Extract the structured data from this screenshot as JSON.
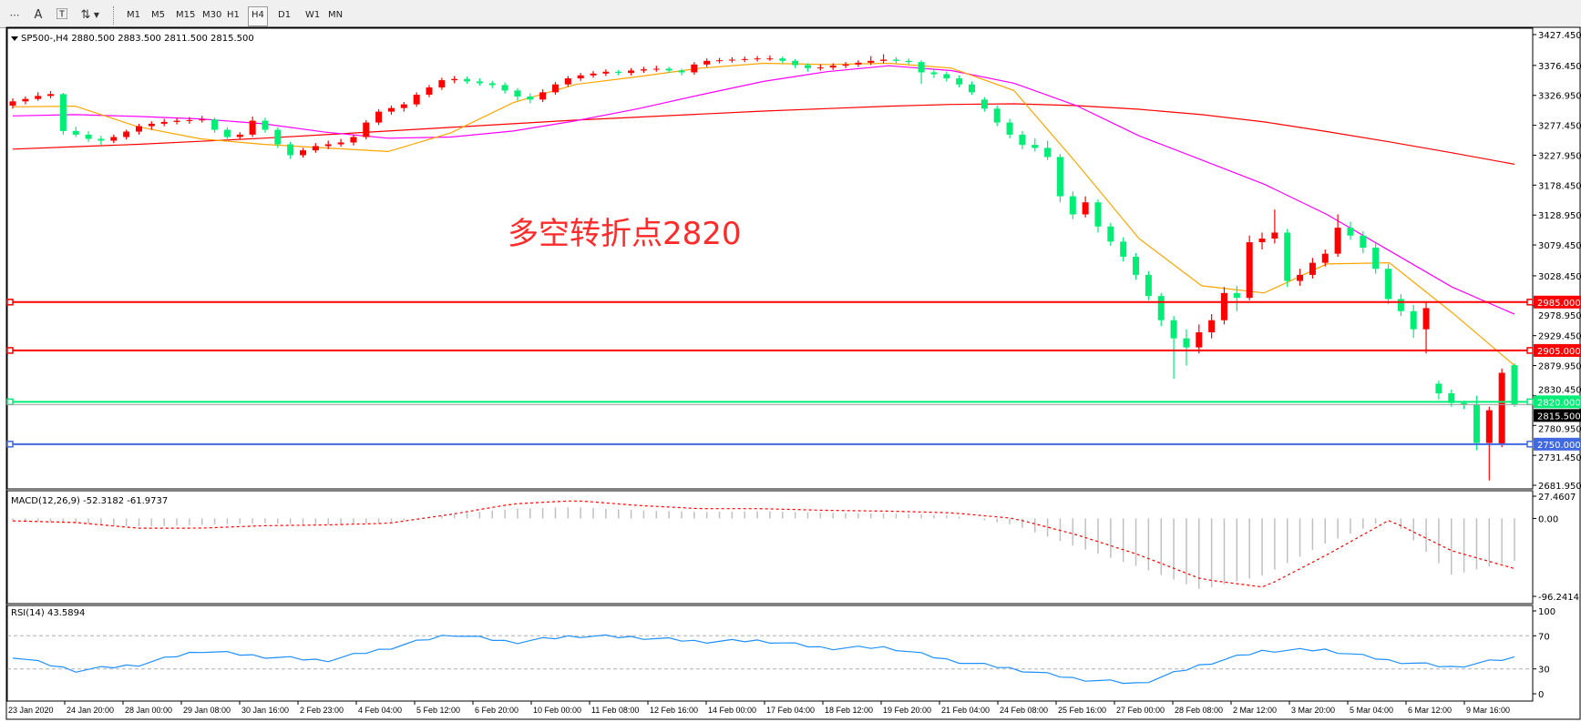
{
  "toolbar": {
    "icons": [
      "grid-icon",
      "text-icon",
      "text-label-icon",
      "arrows-icon"
    ],
    "timeframes": [
      "M1",
      "M5",
      "M15",
      "M30",
      "H1",
      "H4",
      "D1",
      "W1",
      "MN"
    ],
    "active_timeframe": "H4"
  },
  "chart_header": "SP500-,H4  2880.500 2883.500 2811.500 2815.500",
  "annotation": "多空转折点2820",
  "colors": {
    "bull": "#ff0000",
    "bear": "#00ee76",
    "ma_slow": "#ff0000",
    "ma_mid": "#ff00ff",
    "ma_fast": "#ffa500",
    "macd_hist": "#c0c0c0",
    "macd_signal": "#ff0000",
    "rsi": "#1e90ff"
  },
  "chart_data": {
    "type": "candlestick",
    "symbol": "SP500-",
    "timeframe": "H4",
    "ylim": [
      2681.95,
      3427.45
    ],
    "y_ticks": [
      "3427.450",
      "3376.450",
      "3326.950",
      "3277.450",
      "3227.950",
      "3178.450",
      "3128.950",
      "3079.450",
      "3028.450",
      "2978.950",
      "2929.450",
      "2879.950",
      "2830.450",
      "2780.950",
      "2731.450",
      "2681.950"
    ],
    "x_ticks": [
      "23 Jan 2020",
      "24 Jan 20:00",
      "28 Jan 00:00",
      "29 Jan 08:00",
      "30 Jan 16:00",
      "2 Feb 23:00",
      "4 Feb 04:00",
      "5 Feb 12:00",
      "6 Feb 20:00",
      "10 Feb 00:00",
      "11 Feb 08:00",
      "12 Feb 16:00",
      "14 Feb 00:00",
      "17 Feb 04:00",
      "18 Feb 12:00",
      "19 Feb 20:00",
      "21 Feb 04:00",
      "24 Feb 08:00",
      "25 Feb 16:00",
      "27 Feb 00:00",
      "28 Feb 08:00",
      "2 Mar 12:00",
      "3 Mar 20:00",
      "5 Mar 04:00",
      "6 Mar 12:00",
      "9 Mar 16:00"
    ],
    "candles_ohlc": [
      [
        3310,
        3322,
        3305,
        3317
      ],
      [
        3317,
        3325,
        3312,
        3321
      ],
      [
        3321,
        3332,
        3318,
        3326
      ],
      [
        3326,
        3334,
        3322,
        3329
      ],
      [
        3329,
        3331,
        3262,
        3268
      ],
      [
        3268,
        3275,
        3258,
        3262
      ],
      [
        3262,
        3268,
        3250,
        3255
      ],
      [
        3255,
        3260,
        3245,
        3252
      ],
      [
        3252,
        3262,
        3248,
        3258
      ],
      [
        3258,
        3270,
        3254,
        3267
      ],
      [
        3267,
        3280,
        3262,
        3276
      ],
      [
        3276,
        3284,
        3270,
        3280
      ],
      [
        3280,
        3288,
        3276,
        3283
      ],
      [
        3283,
        3290,
        3279,
        3285
      ],
      [
        3285,
        3291,
        3280,
        3286
      ],
      [
        3286,
        3293,
        3282,
        3287
      ],
      [
        3287,
        3290,
        3265,
        3270
      ],
      [
        3270,
        3274,
        3252,
        3258
      ],
      [
        3258,
        3266,
        3254,
        3262
      ],
      [
        3262,
        3292,
        3258,
        3285
      ],
      [
        3285,
        3290,
        3265,
        3270
      ],
      [
        3270,
        3274,
        3240,
        3246
      ],
      [
        3246,
        3250,
        3222,
        3228
      ],
      [
        3228,
        3240,
        3224,
        3236
      ],
      [
        3236,
        3248,
        3232,
        3243
      ],
      [
        3243,
        3252,
        3238,
        3246
      ],
      [
        3246,
        3255,
        3242,
        3249
      ],
      [
        3249,
        3262,
        3244,
        3258
      ],
      [
        3258,
        3286,
        3254,
        3282
      ],
      [
        3282,
        3304,
        3278,
        3300
      ],
      [
        3300,
        3310,
        3295,
        3306
      ],
      [
        3306,
        3316,
        3300,
        3312
      ],
      [
        3312,
        3332,
        3308,
        3328
      ],
      [
        3328,
        3344,
        3324,
        3340
      ],
      [
        3340,
        3356,
        3336,
        3352
      ],
      [
        3352,
        3359,
        3347,
        3354
      ],
      [
        3354,
        3358,
        3346,
        3350
      ],
      [
        3350,
        3355,
        3343,
        3347
      ],
      [
        3347,
        3351,
        3339,
        3344
      ],
      [
        3344,
        3348,
        3330,
        3335
      ],
      [
        3335,
        3339,
        3318,
        3325
      ],
      [
        3325,
        3330,
        3314,
        3320
      ],
      [
        3320,
        3337,
        3316,
        3332
      ],
      [
        3332,
        3349,
        3328,
        3345
      ],
      [
        3345,
        3359,
        3341,
        3355
      ],
      [
        3355,
        3364,
        3351,
        3360
      ],
      [
        3360,
        3367,
        3356,
        3363
      ],
      [
        3363,
        3370,
        3359,
        3366
      ],
      [
        3366,
        3369,
        3360,
        3364
      ],
      [
        3364,
        3372,
        3360,
        3368
      ],
      [
        3368,
        3374,
        3364,
        3370
      ],
      [
        3370,
        3376,
        3366,
        3371
      ],
      [
        3371,
        3374,
        3364,
        3368
      ],
      [
        3368,
        3371,
        3360,
        3365
      ],
      [
        3365,
        3382,
        3361,
        3378
      ],
      [
        3378,
        3388,
        3374,
        3384
      ],
      [
        3384,
        3389,
        3380,
        3385
      ],
      [
        3385,
        3390,
        3381,
        3386
      ],
      [
        3386,
        3391,
        3382,
        3387
      ],
      [
        3387,
        3392,
        3383,
        3388
      ],
      [
        3388,
        3393,
        3384,
        3388
      ],
      [
        3388,
        3391,
        3380,
        3384
      ],
      [
        3384,
        3387,
        3372,
        3377
      ],
      [
        3377,
        3380,
        3366,
        3372
      ],
      [
        3372,
        3378,
        3368,
        3373
      ],
      [
        3373,
        3380,
        3369,
        3376
      ],
      [
        3376,
        3382,
        3372,
        3378
      ],
      [
        3378,
        3385,
        3374,
        3381
      ],
      [
        3381,
        3392,
        3377,
        3384
      ],
      [
        3384,
        3395,
        3380,
        3386
      ],
      [
        3386,
        3390,
        3380,
        3384
      ],
      [
        3384,
        3388,
        3378,
        3382
      ],
      [
        3382,
        3385,
        3346,
        3365
      ],
      [
        3365,
        3370,
        3356,
        3362
      ],
      [
        3362,
        3366,
        3350,
        3355
      ],
      [
        3355,
        3360,
        3340,
        3345
      ],
      [
        3345,
        3350,
        3328,
        3332
      ],
      [
        3320,
        3324,
        3300,
        3305
      ],
      [
        3305,
        3310,
        3276,
        3282
      ],
      [
        3282,
        3288,
        3256,
        3262
      ],
      [
        3262,
        3268,
        3238,
        3245
      ],
      [
        3245,
        3256,
        3234,
        3240
      ],
      [
        3240,
        3252,
        3220,
        3225
      ],
      [
        3225,
        3230,
        3150,
        3160
      ],
      [
        3160,
        3168,
        3122,
        3130
      ],
      [
        3130,
        3160,
        3125,
        3150
      ],
      [
        3150,
        3155,
        3100,
        3110
      ],
      [
        3110,
        3116,
        3078,
        3085
      ],
      [
        3085,
        3092,
        3052,
        3060
      ],
      [
        3060,
        3066,
        3022,
        3030
      ],
      [
        3030,
        3036,
        2988,
        2995
      ],
      [
        2995,
        3000,
        2945,
        2955
      ],
      [
        2955,
        2962,
        2858,
        2925
      ],
      [
        2925,
        2940,
        2880,
        2910
      ],
      [
        2910,
        2948,
        2900,
        2935
      ],
      [
        2935,
        2965,
        2925,
        2955
      ],
      [
        2955,
        3010,
        2948,
        3000
      ],
      [
        3000,
        3012,
        2970,
        2992
      ],
      [
        2992,
        3095,
        2988,
        3084
      ],
      [
        3084,
        3100,
        3072,
        3090
      ],
      [
        3090,
        3138,
        3082,
        3100
      ],
      [
        3100,
        3106,
        3010,
        3020
      ],
      [
        3020,
        3040,
        3012,
        3030
      ],
      [
        3030,
        3058,
        3024,
        3050
      ],
      [
        3050,
        3072,
        3044,
        3065
      ],
      [
        3065,
        3130,
        3060,
        3108
      ],
      [
        3108,
        3118,
        3088,
        3095
      ],
      [
        3095,
        3102,
        3066,
        3075
      ],
      [
        3075,
        3082,
        3032,
        3040
      ],
      [
        3040,
        3048,
        2982,
        2990
      ],
      [
        2990,
        2998,
        2962,
        2970
      ],
      [
        2970,
        2980,
        2926,
        2940
      ],
      [
        2940,
        2985,
        2900,
        2975
      ],
      [
        2850,
        2855,
        2824,
        2834
      ],
      [
        2834,
        2840,
        2812,
        2818
      ],
      [
        2818,
        2822,
        2808,
        2815
      ],
      [
        2815,
        2830,
        2740,
        2752
      ],
      [
        2752,
        2812,
        2690,
        2806
      ],
      [
        2750,
        2875,
        2745,
        2868
      ],
      [
        2880.5,
        2883.5,
        2811.5,
        2815.5
      ]
    ],
    "moving_averages": {
      "slow": [
        3238,
        3242,
        3246,
        3251,
        3256,
        3262,
        3268,
        3274,
        3280,
        3286,
        3291,
        3296,
        3301,
        3305,
        3309,
        3312,
        3313,
        3310,
        3304,
        3295,
        3283,
        3267,
        3250,
        3232,
        3213
      ],
      "mid": [
        3293,
        3295,
        3292,
        3288,
        3280,
        3266,
        3256,
        3258,
        3268,
        3285,
        3305,
        3328,
        3350,
        3366,
        3376,
        3368,
        3347,
        3310,
        3260,
        3220,
        3180,
        3130,
        3070,
        3010,
        2965
      ],
      "fast": [
        3308,
        3309,
        3275,
        3255,
        3246,
        3240,
        3234,
        3265,
        3315,
        3345,
        3358,
        3372,
        3380,
        3378,
        3380,
        3372,
        3335,
        3215,
        3090,
        3012,
        3000,
        3048,
        3050,
        2968,
        2880
      ]
    },
    "horizontal_levels": [
      {
        "price": 2985,
        "label": "2985.000",
        "color": "#ff0000"
      },
      {
        "price": 2905,
        "label": "2905.000",
        "color": "#ff0000"
      },
      {
        "price": 2820,
        "label": "2820.000",
        "color": "#00ee76"
      },
      {
        "price": 2750,
        "label": "2750.000",
        "color": "#4169e1"
      }
    ],
    "bid": {
      "price": 2815.5,
      "label": "2815.500"
    },
    "macd": {
      "label": "MACD(12,26,9) -52.3182 -61.9737",
      "ylim": [
        -96.2414,
        27.4607
      ],
      "y_ticks": [
        "27.4607",
        "0.00",
        "-96.2414"
      ],
      "main": [
        -2,
        -6,
        -10,
        -8,
        -6,
        -8,
        -5,
        5,
        12,
        14,
        10,
        8,
        9,
        7,
        6,
        4,
        -8,
        -35,
        -60,
        -88,
        -70,
        -30,
        0,
        -70,
        -52.3182
      ],
      "signal": [
        -3,
        -5,
        -12,
        -12,
        -9,
        -8,
        -6,
        5,
        18,
        22,
        16,
        12,
        12,
        10,
        9,
        7,
        0,
        -20,
        -45,
        -75,
        -85,
        -45,
        -2,
        -40,
        -61.9737
      ]
    },
    "rsi": {
      "label": "RSI(14) 43.5894",
      "ylim": [
        0,
        100
      ],
      "y_ticks": [
        "100",
        "70",
        "30",
        "0"
      ],
      "levels": [
        70,
        30
      ],
      "values": [
        45,
        28,
        35,
        52,
        45,
        40,
        55,
        72,
        62,
        70,
        68,
        63,
        64,
        55,
        56,
        40,
        30,
        18,
        12,
        35,
        52,
        53,
        40,
        32,
        43.5894
      ]
    }
  }
}
